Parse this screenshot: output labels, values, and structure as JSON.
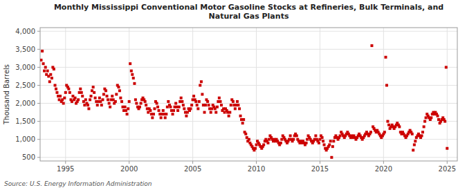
{
  "chart_data": {
    "type": "scatter",
    "title": "Monthly Mississippi Conventional Motor Gasoline Stocks at Refineries, Bulk Terminals, and\nNatural Gas Plants",
    "ylabel": "Thousand Barrels",
    "annotations": [
      "Source: U.S. Energy Information Administration"
    ],
    "color": "#cc0000",
    "marker": "square",
    "grid": true,
    "xlim": [
      1993.0,
      2025.8
    ],
    "ylim": [
      400,
      4100
    ],
    "xticks": [
      1995,
      2000,
      2005,
      2010,
      2015,
      2020,
      2025
    ],
    "yticks": [
      500,
      {
        "value": 1000,
        "label": "1,000"
      },
      {
        "value": 1500,
        "label": "1,500"
      },
      {
        "value": 2000,
        "label": "2,000"
      },
      {
        "value": 2500,
        "label": "2,500"
      },
      {
        "value": 3000,
        "label": "3,000"
      },
      {
        "value": 3500,
        "label": "3,500"
      },
      {
        "value": 4000,
        "label": "4,000"
      }
    ],
    "x": [
      1993.08,
      1993.17,
      1993.25,
      1993.33,
      1993.42,
      1993.5,
      1993.58,
      1993.67,
      1993.75,
      1993.83,
      1993.92,
      1994,
      1994.08,
      1994.17,
      1994.25,
      1994.33,
      1994.42,
      1994.5,
      1994.58,
      1994.67,
      1994.75,
      1994.83,
      1994.92,
      1995,
      1995.08,
      1995.17,
      1995.25,
      1995.33,
      1995.42,
      1995.5,
      1995.58,
      1995.67,
      1995.75,
      1995.83,
      1995.92,
      1996,
      1996.08,
      1996.17,
      1996.25,
      1996.33,
      1996.42,
      1996.5,
      1996.58,
      1996.67,
      1996.75,
      1996.83,
      1996.92,
      1997,
      1997.08,
      1997.17,
      1997.25,
      1997.33,
      1997.42,
      1997.5,
      1997.58,
      1997.67,
      1997.75,
      1997.83,
      1997.92,
      1998,
      1998.08,
      1998.17,
      1998.25,
      1998.33,
      1998.42,
      1998.5,
      1998.58,
      1998.67,
      1998.75,
      1998.83,
      1998.92,
      1999,
      1999.08,
      1999.17,
      1999.25,
      1999.33,
      1999.42,
      1999.5,
      1999.58,
      1999.67,
      1999.75,
      1999.83,
      1999.92,
      2000,
      2000.08,
      2000.17,
      2000.25,
      2000.33,
      2000.42,
      2000.5,
      2000.58,
      2000.67,
      2000.75,
      2000.83,
      2000.92,
      2001,
      2001.08,
      2001.17,
      2001.25,
      2001.33,
      2001.42,
      2001.5,
      2001.58,
      2001.67,
      2001.75,
      2001.83,
      2001.92,
      2002,
      2002.08,
      2002.17,
      2002.25,
      2002.33,
      2002.42,
      2002.5,
      2002.58,
      2002.67,
      2002.75,
      2002.83,
      2002.92,
      2003,
      2003.08,
      2003.17,
      2003.25,
      2003.33,
      2003.42,
      2003.5,
      2003.58,
      2003.67,
      2003.75,
      2003.83,
      2003.92,
      2004,
      2004.08,
      2004.17,
      2004.25,
      2004.33,
      2004.42,
      2004.5,
      2004.58,
      2004.67,
      2004.75,
      2004.83,
      2004.92,
      2005,
      2005.08,
      2005.17,
      2005.25,
      2005.33,
      2005.42,
      2005.5,
      2005.58,
      2005.67,
      2005.75,
      2005.83,
      2005.92,
      2006,
      2006.08,
      2006.17,
      2006.25,
      2006.33,
      2006.42,
      2006.5,
      2006.58,
      2006.67,
      2006.75,
      2006.83,
      2006.92,
      2007,
      2007.08,
      2007.17,
      2007.25,
      2007.33,
      2007.42,
      2007.5,
      2007.58,
      2007.67,
      2007.75,
      2007.83,
      2007.92,
      2008,
      2008.08,
      2008.17,
      2008.25,
      2008.33,
      2008.42,
      2008.5,
      2008.58,
      2008.67,
      2008.75,
      2008.83,
      2008.92,
      2009,
      2009.08,
      2009.17,
      2009.25,
      2009.33,
      2009.42,
      2009.5,
      2009.58,
      2009.67,
      2009.75,
      2009.83,
      2009.92,
      2010,
      2010.08,
      2010.17,
      2010.25,
      2010.33,
      2010.42,
      2010.5,
      2010.58,
      2010.67,
      2010.75,
      2010.83,
      2010.92,
      2011,
      2011.08,
      2011.17,
      2011.25,
      2011.33,
      2011.42,
      2011.5,
      2011.58,
      2011.67,
      2011.75,
      2011.83,
      2011.92,
      2012,
      2012.08,
      2012.17,
      2012.25,
      2012.33,
      2012.42,
      2012.5,
      2012.58,
      2012.67,
      2012.75,
      2012.83,
      2012.92,
      2013,
      2013.08,
      2013.17,
      2013.25,
      2013.33,
      2013.42,
      2013.5,
      2013.58,
      2013.67,
      2013.75,
      2013.83,
      2013.92,
      2014,
      2014.08,
      2014.17,
      2014.25,
      2014.33,
      2014.42,
      2014.5,
      2014.58,
      2014.67,
      2014.75,
      2014.83,
      2014.92,
      2015,
      2015.08,
      2015.17,
      2015.25,
      2015.33,
      2015.42,
      2015.5,
      2015.58,
      2015.67,
      2015.75,
      2015.83,
      2015.92,
      2016,
      2016.08,
      2016.17,
      2016.25,
      2016.33,
      2016.42,
      2016.5,
      2016.58,
      2016.67,
      2016.75,
      2016.83,
      2016.92,
      2017,
      2017.08,
      2017.17,
      2017.25,
      2017.33,
      2017.42,
      2017.5,
      2017.58,
      2017.67,
      2017.75,
      2017.83,
      2017.92,
      2018,
      2018.08,
      2018.17,
      2018.25,
      2018.33,
      2018.42,
      2018.5,
      2018.58,
      2018.67,
      2018.75,
      2018.83,
      2018.92,
      2019,
      2019.08,
      2019.17,
      2019.25,
      2019.33,
      2019.42,
      2019.5,
      2019.58,
      2019.67,
      2019.75,
      2019.83,
      2019.92,
      2020,
      2020.08,
      2020.17,
      2020.25,
      2020.33,
      2020.42,
      2020.5,
      2020.58,
      2020.67,
      2020.75,
      2020.83,
      2020.92,
      2021,
      2021.08,
      2021.17,
      2021.25,
      2021.33,
      2021.42,
      2021.5,
      2021.58,
      2021.67,
      2021.75,
      2021.83,
      2021.92,
      2022,
      2022.08,
      2022.17,
      2022.25,
      2022.33,
      2022.42,
      2022.5,
      2022.58,
      2022.67,
      2022.75,
      2022.83,
      2022.92,
      2023,
      2023.08,
      2023.17,
      2023.25,
      2023.33,
      2023.42,
      2023.5,
      2023.58,
      2023.67,
      2023.75,
      2023.83,
      2023.92,
      2024,
      2024.08,
      2024.17,
      2024.25,
      2024.33,
      2024.42,
      2024.5,
      2024.58,
      2024.67,
      2024.75,
      2024.83,
      2024.92,
      2025
    ],
    "values": [
      3200,
      3450,
      3100,
      2900,
      3000,
      2800,
      2900,
      2750,
      2600,
      2800,
      2700,
      3000,
      2950,
      2500,
      2400,
      2300,
      2200,
      2100,
      2200,
      2050,
      2100,
      2000,
      2150,
      2300,
      2500,
      2450,
      2400,
      2300,
      2100,
      2050,
      2200,
      2100,
      2150,
      2000,
      2050,
      2100,
      2300,
      2400,
      2300,
      2200,
      2050,
      1950,
      2100,
      2000,
      1950,
      1850,
      2100,
      2200,
      2350,
      2450,
      2300,
      2150,
      2050,
      1950,
      2050,
      2150,
      2050,
      1950,
      2100,
      2250,
      2400,
      2350,
      2200,
      2100,
      2000,
      1900,
      2100,
      2200,
      2100,
      2000,
      2050,
      2250,
      2500,
      2450,
      2350,
      2150,
      2050,
      1900,
      1800,
      1900,
      1800,
      1700,
      1850,
      2050,
      3100,
      2900,
      2800,
      2700,
      2550,
      2100,
      2000,
      1900,
      1850,
      1900,
      2000,
      2100,
      2150,
      2100,
      2050,
      1950,
      1850,
      1750,
      1850,
      1800,
      1700,
      1600,
      1700,
      1850,
      2050,
      2000,
      1900,
      1800,
      1700,
      1600,
      1700,
      1800,
      1700,
      1600,
      1700,
      1900,
      2050,
      1950,
      1900,
      1800,
      1700,
      1800,
      1900,
      2000,
      1900,
      1800,
      1900,
      2050,
      2150,
      2050,
      1950,
      1850,
      1750,
      1650,
      1750,
      1850,
      1800,
      1850,
      1950,
      2100,
      2200,
      2100,
      2050,
      1950,
      1850,
      2050,
      2500,
      2600,
      2250,
      1950,
      1750,
      1950,
      2100,
      2050,
      1950,
      1850,
      1750,
      1850,
      1950,
      1900,
      1850,
      1750,
      1900,
      2050,
      2150,
      2050,
      1950,
      1800,
      1850,
      1750,
      1850,
      1800,
      1750,
      1650,
      1750,
      1950,
      2100,
      2050,
      1950,
      1850,
      1950,
      2050,
      1950,
      1850,
      1650,
      1550,
      1450,
      1550,
      1200,
      1150,
      1050,
      950,
      1000,
      900,
      850,
      800,
      750,
      700,
      750,
      850,
      950,
      900,
      850,
      800,
      750,
      800,
      850,
      950,
      1000,
      950,
      900,
      1000,
      1100,
      1050,
      1000,
      950,
      1000,
      950,
      1000,
      950,
      900,
      850,
      900,
      1000,
      1100,
      1050,
      1000,
      950,
      900,
      950,
      1000,
      1100,
      1000,
      950,
      1000,
      1100,
      1150,
      1100,
      1000,
      950,
      900,
      950,
      900,
      950,
      900,
      850,
      900,
      1000,
      1100,
      1050,
      1000,
      950,
      900,
      950,
      1000,
      1100,
      1000,
      950,
      900,
      1000,
      1100,
      1050,
      950,
      850,
      750,
      700,
      750,
      800,
      850,
      950,
      500,
      800,
      950,
      1050,
      1100,
      1050,
      1000,
      1050,
      1100,
      1200,
      1150,
      1100,
      1050,
      1100,
      1150,
      1200,
      1150,
      1100,
      1050,
      1100,
      1050,
      1100,
      1050,
      1000,
      1050,
      1100,
      1150,
      1100,
      1050,
      1000,
      1050,
      1100,
      1150,
      1200,
      1150,
      1100,
      1150,
      1200,
      3600,
      1350,
      1300,
      1250,
      1200,
      1250,
      1200,
      1150,
      1100,
      1050,
      1100,
      1150,
      1200,
      3280,
      2500,
      1500,
      1400,
      1300,
      1350,
      1400,
      1350,
      1300,
      1350,
      1400,
      1450,
      1400,
      1350,
      1200,
      1150,
      1200,
      1150,
      1100,
      1050,
      1100,
      1150,
      1200,
      1250,
      1200,
      1150,
      700,
      850,
      950,
      1050,
      1100,
      1150,
      1100,
      1050,
      1100,
      1200,
      1350,
      1500,
      1600,
      1700,
      1650,
      1600,
      1550,
      1600,
      1700,
      1750,
      1700,
      1750,
      1700,
      1650,
      1550,
      1450,
      1500,
      1550,
      1600,
      1550,
      1500,
      3000,
      750
    ]
  }
}
